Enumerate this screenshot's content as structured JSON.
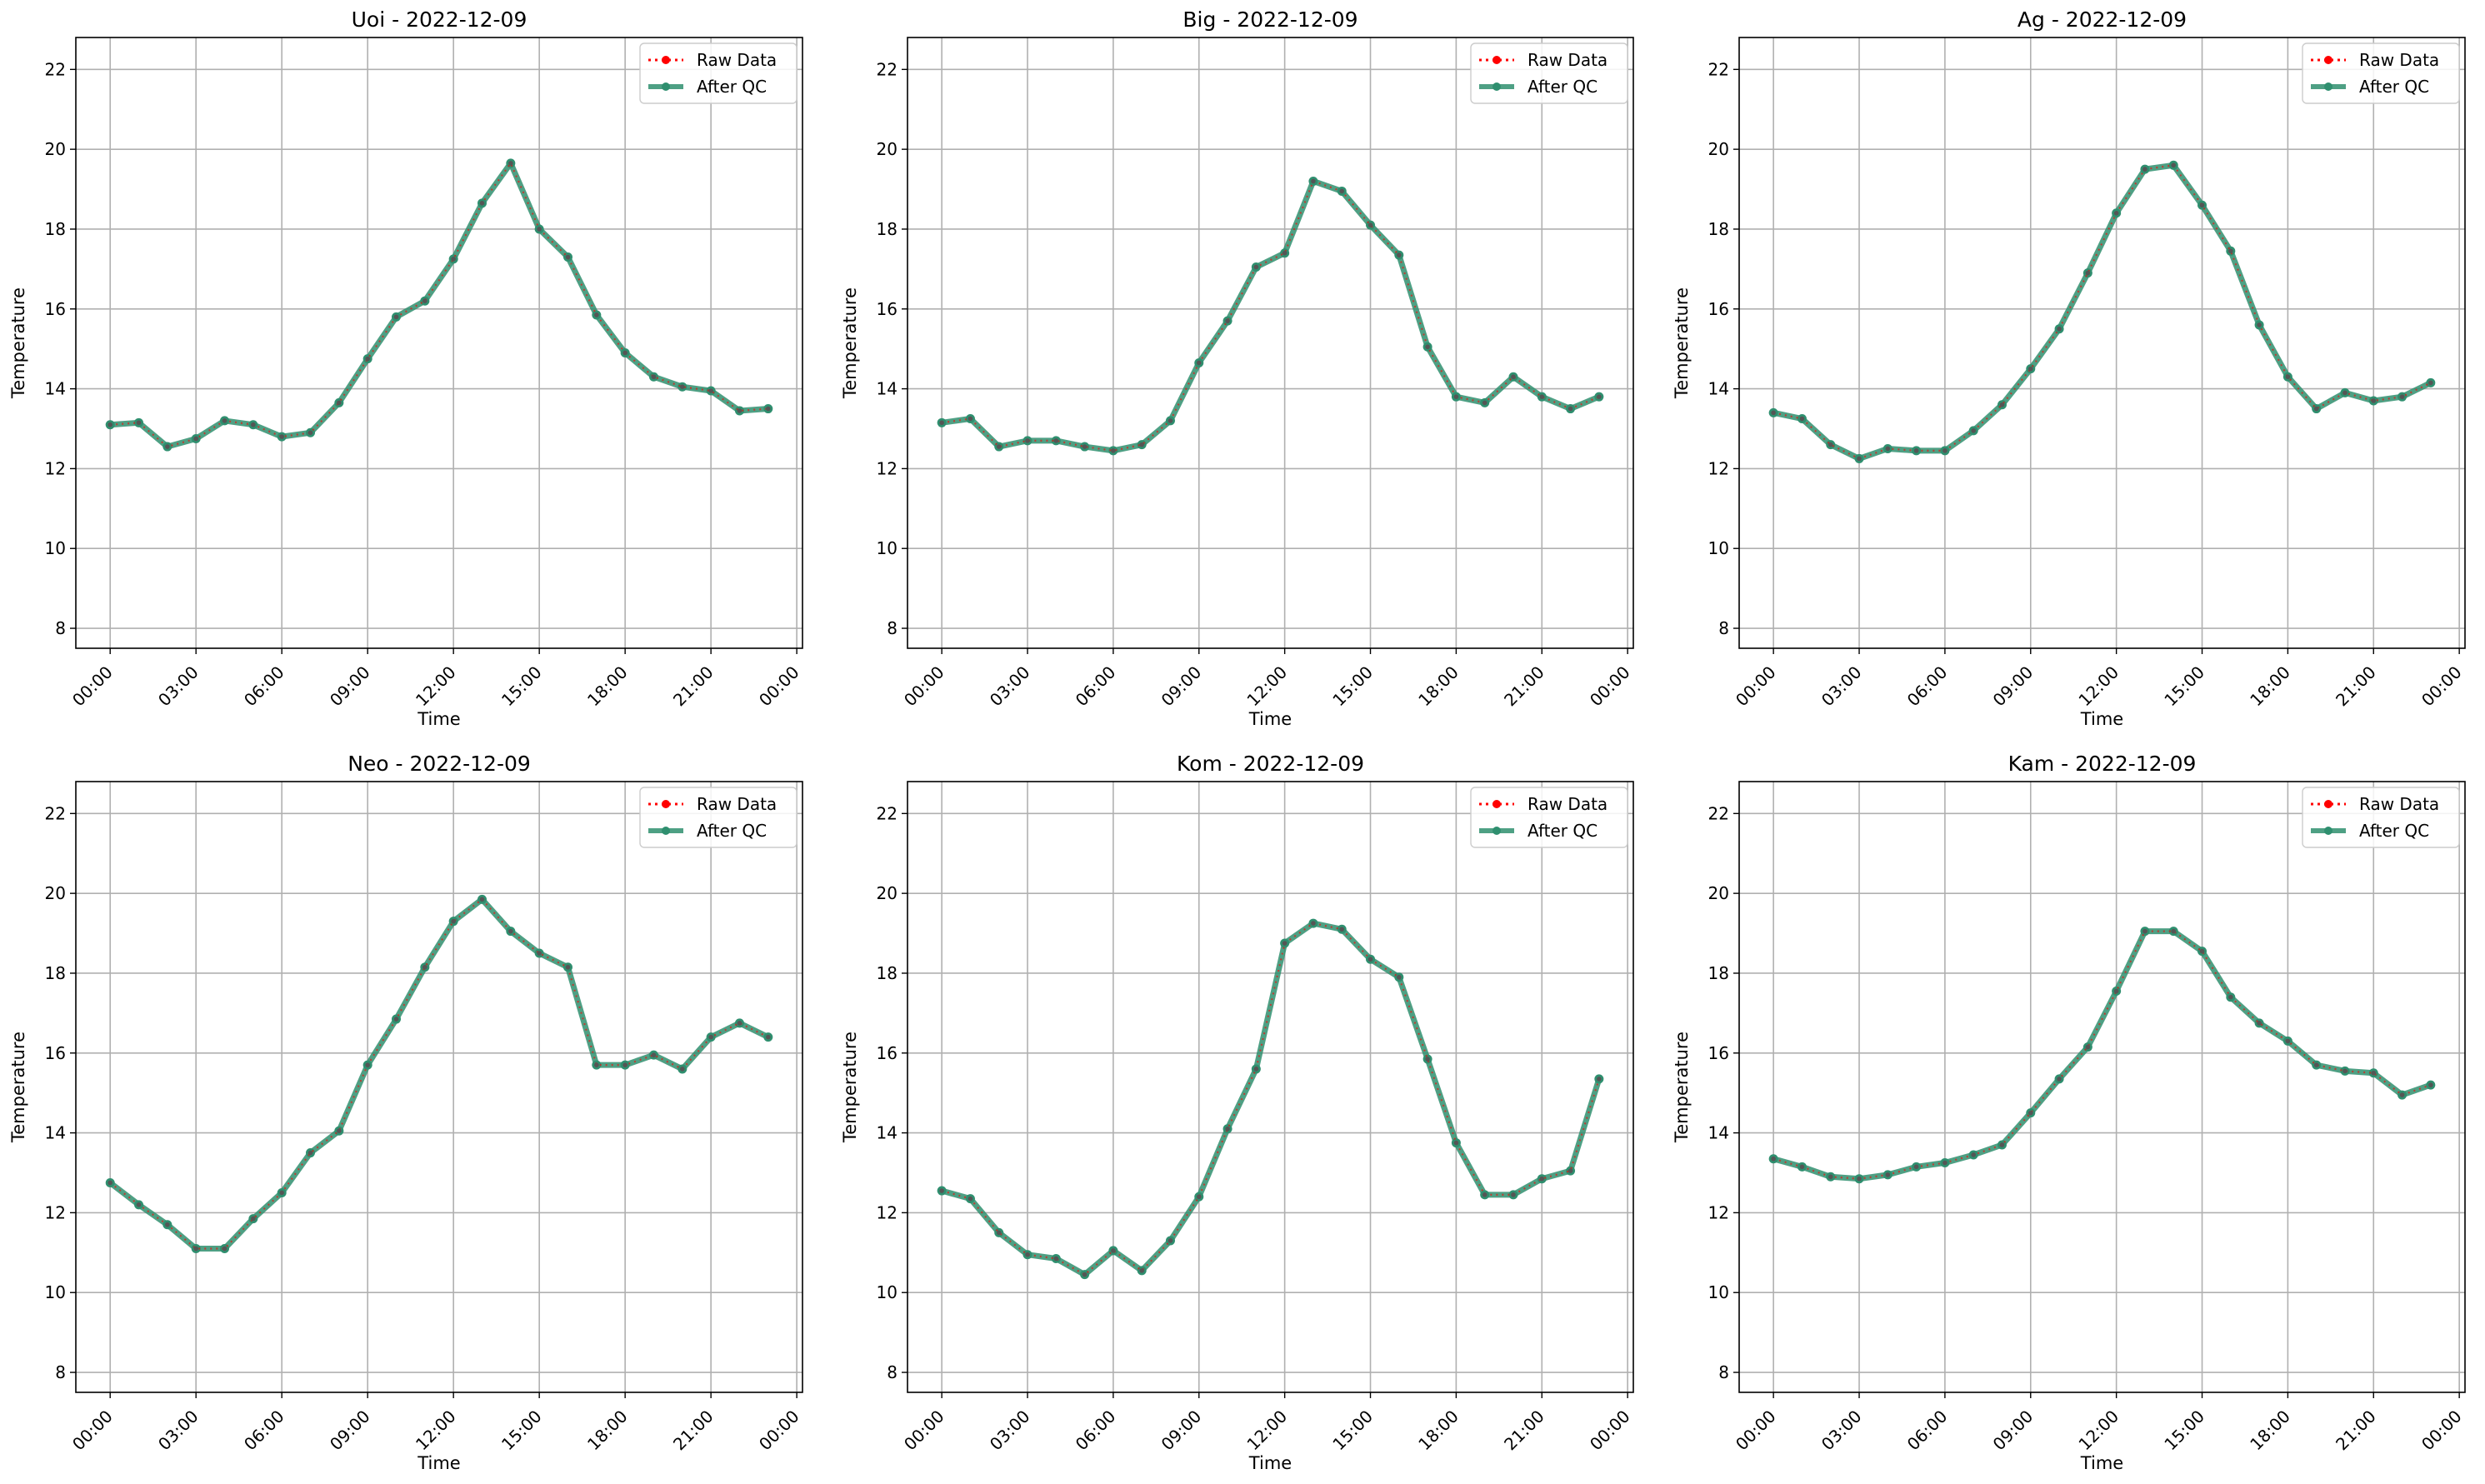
{
  "figure": {
    "legend_placement": "upper right",
    "grid": true,
    "colors": {
      "raw": "#ff0000",
      "qc": "#2f8f6f",
      "grid": "#b0b0b0"
    }
  },
  "chart_data": [
    {
      "type": "line",
      "title": "Uoi - 2022-12-09",
      "xlabel": "Time",
      "ylabel": "Temperature",
      "x_tick_labels": [
        "00:00",
        "03:00",
        "06:00",
        "09:00",
        "12:00",
        "15:00",
        "18:00",
        "21:00",
        "00:00"
      ],
      "y_ticks": [
        8,
        10,
        12,
        14,
        16,
        18,
        20,
        22
      ],
      "xlim_hours": [
        -1.2,
        24.2
      ],
      "ylim": [
        7.5,
        22.8
      ],
      "x_hours": [
        0,
        1,
        2,
        3,
        4,
        5,
        6,
        7,
        8,
        9,
        10,
        11,
        12,
        13,
        14,
        15,
        16,
        17,
        18,
        19,
        20,
        21,
        22,
        23
      ],
      "series": [
        {
          "name": "Raw Data",
          "style": "dotted-marker",
          "values": [
            13.1,
            13.15,
            12.55,
            12.75,
            13.2,
            13.1,
            12.8,
            12.9,
            13.65,
            14.75,
            15.8,
            16.2,
            17.25,
            18.65,
            19.65,
            18.0,
            17.3,
            15.85,
            14.9,
            14.3,
            14.05,
            13.95,
            13.45,
            13.5
          ]
        },
        {
          "name": "After QC",
          "style": "solid-marker",
          "values": [
            13.1,
            13.15,
            12.55,
            12.75,
            13.2,
            13.1,
            12.8,
            12.9,
            13.65,
            14.75,
            15.8,
            16.2,
            17.25,
            18.65,
            19.65,
            18.0,
            17.3,
            15.85,
            14.9,
            14.3,
            14.05,
            13.95,
            13.45,
            13.5
          ]
        }
      ]
    },
    {
      "type": "line",
      "title": "Big - 2022-12-09",
      "xlabel": "Time",
      "ylabel": "Temperature",
      "x_tick_labels": [
        "00:00",
        "03:00",
        "06:00",
        "09:00",
        "12:00",
        "15:00",
        "18:00",
        "21:00",
        "00:00"
      ],
      "y_ticks": [
        8,
        10,
        12,
        14,
        16,
        18,
        20,
        22
      ],
      "xlim_hours": [
        -1.2,
        24.2
      ],
      "ylim": [
        7.5,
        22.8
      ],
      "x_hours": [
        0,
        1,
        2,
        3,
        4,
        5,
        6,
        7,
        8,
        9,
        10,
        11,
        12,
        13,
        14,
        15,
        16,
        17,
        18,
        19,
        20,
        21,
        22,
        23
      ],
      "series": [
        {
          "name": "Raw Data",
          "style": "dotted-marker",
          "values": [
            13.15,
            13.25,
            12.55,
            12.7,
            12.7,
            12.55,
            12.45,
            12.6,
            13.2,
            14.65,
            15.7,
            17.05,
            17.4,
            19.2,
            18.95,
            18.1,
            17.35,
            15.05,
            13.8,
            13.65,
            14.3,
            13.8,
            13.5,
            13.8
          ]
        },
        {
          "name": "After QC",
          "style": "solid-marker",
          "values": [
            13.15,
            13.25,
            12.55,
            12.7,
            12.7,
            12.55,
            12.45,
            12.6,
            13.2,
            14.65,
            15.7,
            17.05,
            17.4,
            19.2,
            18.95,
            18.1,
            17.35,
            15.05,
            13.8,
            13.65,
            14.3,
            13.8,
            13.5,
            13.8
          ]
        }
      ]
    },
    {
      "type": "line",
      "title": "Ag - 2022-12-09",
      "xlabel": "Time",
      "ylabel": "Temperature",
      "x_tick_labels": [
        "00:00",
        "03:00",
        "06:00",
        "09:00",
        "12:00",
        "15:00",
        "18:00",
        "21:00",
        "00:00"
      ],
      "y_ticks": [
        8,
        10,
        12,
        14,
        16,
        18,
        20,
        22
      ],
      "xlim_hours": [
        -1.2,
        24.2
      ],
      "ylim": [
        7.5,
        22.8
      ],
      "x_hours": [
        0,
        1,
        2,
        3,
        4,
        5,
        6,
        7,
        8,
        9,
        10,
        11,
        12,
        13,
        14,
        15,
        16,
        17,
        18,
        19,
        20,
        21,
        22,
        23
      ],
      "series": [
        {
          "name": "Raw Data",
          "style": "dotted-marker",
          "values": [
            13.4,
            13.25,
            12.6,
            12.25,
            12.5,
            12.45,
            12.45,
            12.95,
            13.6,
            14.5,
            15.5,
            16.9,
            18.4,
            19.5,
            19.6,
            18.6,
            17.45,
            15.6,
            14.3,
            13.5,
            13.9,
            13.7,
            13.8,
            14.15
          ]
        },
        {
          "name": "After QC",
          "style": "solid-marker",
          "values": [
            13.4,
            13.25,
            12.6,
            12.25,
            12.5,
            12.45,
            12.45,
            12.95,
            13.6,
            14.5,
            15.5,
            16.9,
            18.4,
            19.5,
            19.6,
            18.6,
            17.45,
            15.6,
            14.3,
            13.5,
            13.9,
            13.7,
            13.8,
            14.15
          ]
        }
      ]
    },
    {
      "type": "line",
      "title": "Neo - 2022-12-09",
      "xlabel": "Time",
      "ylabel": "Temperature",
      "x_tick_labels": [
        "00:00",
        "03:00",
        "06:00",
        "09:00",
        "12:00",
        "15:00",
        "18:00",
        "21:00",
        "00:00"
      ],
      "y_ticks": [
        8,
        10,
        12,
        14,
        16,
        18,
        20,
        22
      ],
      "xlim_hours": [
        -1.2,
        24.2
      ],
      "ylim": [
        7.5,
        22.8
      ],
      "x_hours": [
        0,
        1,
        2,
        3,
        4,
        5,
        6,
        7,
        8,
        9,
        10,
        11,
        12,
        13,
        14,
        15,
        16,
        17,
        18,
        19,
        20,
        21,
        22,
        23
      ],
      "series": [
        {
          "name": "Raw Data",
          "style": "dotted-marker",
          "values": [
            12.75,
            12.2,
            11.7,
            11.1,
            11.1,
            11.85,
            12.5,
            13.5,
            14.05,
            15.7,
            16.85,
            18.15,
            19.3,
            19.85,
            19.05,
            18.5,
            18.15,
            15.7,
            15.7,
            15.95,
            15.6,
            16.4,
            16.75,
            16.4
          ]
        },
        {
          "name": "After QC",
          "style": "solid-marker",
          "values": [
            12.75,
            12.2,
            11.7,
            11.1,
            11.1,
            11.85,
            12.5,
            13.5,
            14.05,
            15.7,
            16.85,
            18.15,
            19.3,
            19.85,
            19.05,
            18.5,
            18.15,
            15.7,
            15.7,
            15.95,
            15.6,
            16.4,
            16.75,
            16.4
          ]
        }
      ]
    },
    {
      "type": "line",
      "title": "Kom - 2022-12-09",
      "xlabel": "Time",
      "ylabel": "Temperature",
      "x_tick_labels": [
        "00:00",
        "03:00",
        "06:00",
        "09:00",
        "12:00",
        "15:00",
        "18:00",
        "21:00",
        "00:00"
      ],
      "y_ticks": [
        8,
        10,
        12,
        14,
        16,
        18,
        20,
        22
      ],
      "xlim_hours": [
        -1.2,
        24.2
      ],
      "ylim": [
        7.5,
        22.8
      ],
      "x_hours": [
        0,
        1,
        2,
        3,
        4,
        5,
        6,
        7,
        8,
        9,
        10,
        11,
        12,
        13,
        14,
        15,
        16,
        17,
        18,
        19,
        20,
        21,
        22,
        23
      ],
      "series": [
        {
          "name": "Raw Data",
          "style": "dotted-marker",
          "values": [
            12.55,
            12.35,
            11.5,
            10.95,
            10.85,
            10.45,
            11.05,
            10.55,
            11.3,
            12.4,
            14.1,
            15.6,
            18.75,
            19.25,
            19.1,
            18.35,
            17.9,
            15.85,
            13.75,
            12.45,
            12.45,
            12.85,
            13.05,
            15.35
          ]
        },
        {
          "name": "After QC",
          "style": "solid-marker",
          "values": [
            12.55,
            12.35,
            11.5,
            10.95,
            10.85,
            10.45,
            11.05,
            10.55,
            11.3,
            12.4,
            14.1,
            15.6,
            18.75,
            19.25,
            19.1,
            18.35,
            17.9,
            15.85,
            13.75,
            12.45,
            12.45,
            12.85,
            13.05,
            15.35
          ]
        }
      ]
    },
    {
      "type": "line",
      "title": "Kam - 2022-12-09",
      "xlabel": "Time",
      "ylabel": "Temperature",
      "x_tick_labels": [
        "00:00",
        "03:00",
        "06:00",
        "09:00",
        "12:00",
        "15:00",
        "18:00",
        "21:00",
        "00:00"
      ],
      "y_ticks": [
        8,
        10,
        12,
        14,
        16,
        18,
        20,
        22
      ],
      "xlim_hours": [
        -1.2,
        24.2
      ],
      "ylim": [
        7.5,
        22.8
      ],
      "x_hours": [
        0,
        1,
        2,
        3,
        4,
        5,
        6,
        7,
        8,
        9,
        10,
        11,
        12,
        13,
        14,
        15,
        16,
        17,
        18,
        19,
        20,
        21,
        22,
        23
      ],
      "series": [
        {
          "name": "Raw Data",
          "style": "dotted-marker",
          "values": [
            13.35,
            13.15,
            12.9,
            12.85,
            12.95,
            13.15,
            13.25,
            13.45,
            13.7,
            14.5,
            15.35,
            16.15,
            17.55,
            19.05,
            19.05,
            18.55,
            17.4,
            16.75,
            16.3,
            15.7,
            15.55,
            15.5,
            14.95,
            15.2
          ]
        },
        {
          "name": "After QC",
          "style": "solid-marker",
          "values": [
            13.35,
            13.15,
            12.9,
            12.85,
            12.95,
            13.15,
            13.25,
            13.45,
            13.7,
            14.5,
            15.35,
            16.15,
            17.55,
            19.05,
            19.05,
            18.55,
            17.4,
            16.75,
            16.3,
            15.7,
            15.55,
            15.5,
            14.95,
            15.2
          ]
        }
      ]
    }
  ]
}
